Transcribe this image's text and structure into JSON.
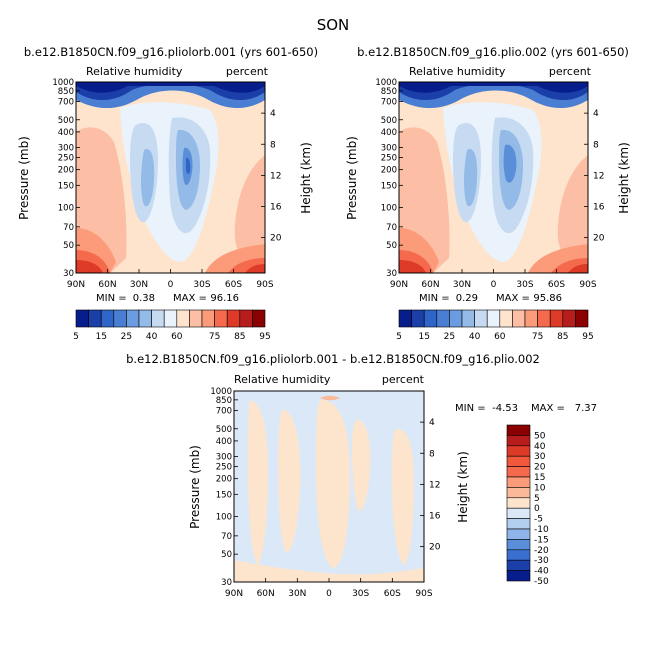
{
  "figure_title": "SON",
  "chart_data": [
    {
      "id": "left",
      "type": "heatmap",
      "title": "b.e12.B1850CN.f09_g16.pliolorb.001 (yrs 601-650)",
      "left_label": "Relative humidity",
      "right_label": "percent",
      "ylabel": "Pressure (mb)",
      "y2label": "Height (km)",
      "x_ticks": [
        "90N",
        "60N",
        "30N",
        "0",
        "30S",
        "60S",
        "90S"
      ],
      "y_ticks": [
        30,
        50,
        70,
        100,
        150,
        200,
        250,
        300,
        400,
        500,
        700,
        850,
        1000
      ],
      "y2_ticks": [
        20,
        16,
        12,
        8,
        4
      ],
      "ylim": [
        1000,
        30
      ],
      "min_label": "MIN =",
      "min_value": "0.38",
      "max_label": "MAX =",
      "max_value": "96.16",
      "colorbar": {
        "orientation": "horizontal",
        "labels": [
          "5",
          "15",
          "25",
          "40",
          "60",
          "75",
          "85",
          "95"
        ],
        "levels": [
          5,
          10,
          15,
          20,
          25,
          30,
          40,
          50,
          60,
          65,
          70,
          75,
          80,
          85,
          90,
          95
        ]
      }
    },
    {
      "id": "right",
      "type": "heatmap",
      "title": "b.e12.B1850CN.f09_g16.plio.002 (yrs 601-650)",
      "left_label": "Relative humidity",
      "right_label": "percent",
      "ylabel": "Pressure (mb)",
      "y2label": "Height (km)",
      "x_ticks": [
        "90N",
        "60N",
        "30N",
        "0",
        "30S",
        "60S",
        "90S"
      ],
      "y_ticks": [
        30,
        50,
        70,
        100,
        150,
        200,
        250,
        300,
        400,
        500,
        700,
        850,
        1000
      ],
      "y2_ticks": [
        20,
        16,
        12,
        8,
        4
      ],
      "ylim": [
        1000,
        30
      ],
      "min_label": "MIN =",
      "min_value": "0.29",
      "max_label": "MAX =",
      "max_value": "95.86",
      "colorbar": {
        "orientation": "horizontal",
        "labels": [
          "5",
          "15",
          "25",
          "40",
          "60",
          "75",
          "85",
          "95"
        ],
        "levels": [
          5,
          10,
          15,
          20,
          25,
          30,
          40,
          50,
          60,
          65,
          70,
          75,
          80,
          85,
          90,
          95
        ]
      }
    },
    {
      "id": "diff",
      "type": "heatmap",
      "title": "b.e12.B1850CN.f09_g16.pliolorb.001 - b.e12.B1850CN.f09_g16.plio.002",
      "left_label": "Relative humidity",
      "right_label": "percent",
      "ylabel": "Pressure (mb)",
      "y2label": "Height (km)",
      "x_ticks": [
        "90N",
        "60N",
        "30N",
        "0",
        "30S",
        "60S",
        "90S"
      ],
      "y_ticks": [
        30,
        50,
        70,
        100,
        150,
        200,
        250,
        300,
        400,
        500,
        700,
        850,
        1000
      ],
      "y2_ticks": [
        20,
        16,
        12,
        8,
        4
      ],
      "ylim": [
        1000,
        30
      ],
      "min_label": "MIN =",
      "min_value": "-4.53",
      "max_label": "MAX =",
      "max_value": "7.37",
      "colorbar": {
        "orientation": "vertical",
        "labels": [
          "50",
          "40",
          "30",
          "20",
          "15",
          "10",
          "5",
          "0",
          "-5",
          "-10",
          "-15",
          "-20",
          "-30",
          "-40",
          "-50"
        ]
      }
    }
  ]
}
